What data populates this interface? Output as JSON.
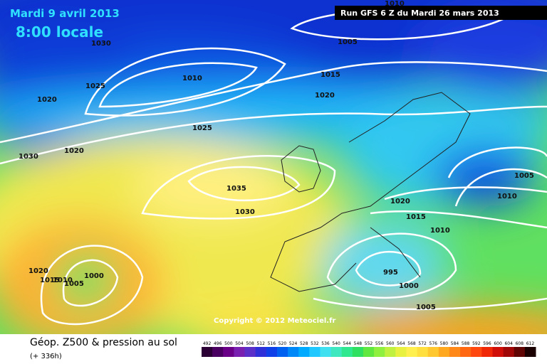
{
  "header": {
    "date": "Mardi 9 avril 2013",
    "time": "8:00 locale",
    "run": "Run GFS 6 Z du Mardi 26 mars 2013"
  },
  "copyright": "Copyright © 2012 Meteociel.fr",
  "footer": {
    "title": "Géop. Z500 & pression au sol",
    "range": "(+ 336h)"
  },
  "isobars": [
    "1010",
    "1030",
    "1005",
    "1010",
    "1015",
    "1025",
    "1020",
    "1020",
    "1025",
    "1020",
    "1030",
    "1005",
    "1035",
    "1010",
    "1020",
    "1030",
    "1015",
    "1010",
    "1020",
    "1000",
    "1015",
    "1010",
    "1005",
    "995",
    "1000",
    "1005"
  ],
  "scale": {
    "labels": [
      "492",
      "496",
      "500",
      "504",
      "508",
      "512",
      "516",
      "520",
      "524",
      "528",
      "532",
      "536",
      "540",
      "544",
      "548",
      "552",
      "556",
      "560",
      "564",
      "568",
      "572",
      "576",
      "580",
      "584",
      "588",
      "592",
      "596",
      "600",
      "604",
      "608",
      "612"
    ],
    "colors": [
      "#2b0035",
      "#4a0060",
      "#6a0088",
      "#7a20b0",
      "#5a30c8",
      "#3030d8",
      "#1040e8",
      "#0060f0",
      "#0088f8",
      "#00aaff",
      "#20c8ff",
      "#40e0f0",
      "#40e8c0",
      "#30e890",
      "#30e060",
      "#60e840",
      "#90f040",
      "#c0f040",
      "#e8f040",
      "#fff050",
      "#ffe040",
      "#ffc830",
      "#ffa820",
      "#ff8818",
      "#ff6810",
      "#ff4810",
      "#f02808",
      "#d01008",
      "#a00808",
      "#600404",
      "#1a0000"
    ]
  }
}
